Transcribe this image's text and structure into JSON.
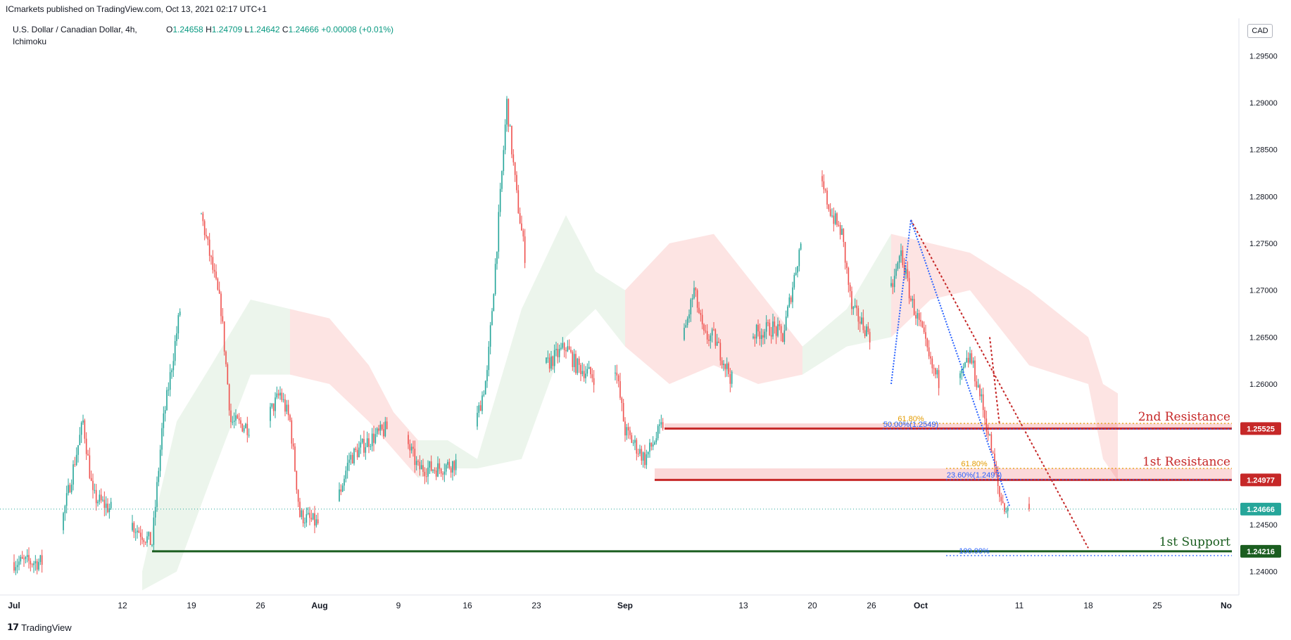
{
  "header": {
    "text": "ICmarkets published on TradingView.com, Oct 13, 2021 02:17 UTC+1"
  },
  "legend": {
    "symbol": "U.S. Dollar / Canadian Dollar, 4h,",
    "indicator": "Ichimoku",
    "open_label": "O",
    "open": "1.24658",
    "high_label": "H",
    "high": "1.24709",
    "low_label": "L",
    "low": "1.24642",
    "close_label": "C",
    "close": "1.24666",
    "change": "+0.00008 (+0.01%)"
  },
  "currency": "CAD",
  "footer": {
    "brand": "TradingView",
    "logo_icon": "tradingview-logo-icon"
  },
  "colors": {
    "up": "#26a69a",
    "down": "#ef5350",
    "resistance": "#c62828",
    "support": "#1b5e20",
    "fib_orange": "#e39b00",
    "fib_blue": "#2962ff",
    "last_price": "#26a69a"
  },
  "chart_data": {
    "type": "candlestick",
    "symbol": "USDCAD",
    "timeframe": "4h",
    "ylim": [
      1.2375,
      1.299
    ],
    "y_ticks": [
      "1.24000",
      "1.24500",
      "1.25000",
      "1.25500",
      "1.26000",
      "1.26500",
      "1.27000",
      "1.27500",
      "1.28000",
      "1.28500",
      "1.29000",
      "1.29500"
    ],
    "x_ticks": [
      "Jul",
      "12",
      "19",
      "26",
      "Aug",
      "9",
      "16",
      "23",
      "Sep",
      "13",
      "20",
      "26",
      "Oct",
      "11",
      "18",
      "25",
      "No"
    ],
    "path_anchors": [
      [
        "Jul 1",
        1.241
      ],
      [
        "Jul 5",
        1.241
      ],
      [
        "Jul 8",
        1.256
      ],
      [
        "Jul 9",
        1.248
      ],
      [
        "Jul 13",
        1.245
      ],
      [
        "Jul 15",
        1.243
      ],
      [
        "Jul 16",
        1.255
      ],
      [
        "Jul 19",
        1.276
      ],
      [
        "Jul 20",
        1.278
      ],
      [
        "Jul 21",
        1.273
      ],
      [
        "Jul 22",
        1.268
      ],
      [
        "Jul 23",
        1.256
      ],
      [
        "Jul 26",
        1.255
      ],
      [
        "Jul 28",
        1.259
      ],
      [
        "Jul 29",
        1.256
      ],
      [
        "Jul 30",
        1.246
      ],
      [
        "Aug 2",
        1.2445
      ],
      [
        "Aug 4",
        1.252
      ],
      [
        "Aug 6",
        1.254
      ],
      [
        "Aug 9",
        1.256
      ],
      [
        "Aug 11",
        1.251
      ],
      [
        "Aug 13",
        1.251
      ],
      [
        "Aug 16",
        1.252
      ],
      [
        "Aug 18",
        1.261
      ],
      [
        "Aug 19",
        1.275
      ],
      [
        "Aug 20",
        1.29
      ],
      [
        "Aug 21",
        1.28
      ],
      [
        "Aug 23",
        1.265
      ],
      [
        "Aug 24",
        1.262
      ],
      [
        "Aug 26",
        1.264
      ],
      [
        "Aug 27",
        1.262
      ],
      [
        "Aug 30",
        1.26
      ],
      [
        "Aug 31",
        1.262
      ],
      [
        "Sep 1",
        1.255
      ],
      [
        "Sep 3",
        1.252
      ],
      [
        "Sep 5",
        1.256
      ],
      [
        "Sep 8",
        1.27
      ],
      [
        "Sep 9",
        1.265
      ],
      [
        "Sep 10",
        1.265
      ],
      [
        "Sep 12",
        1.26
      ],
      [
        "Sep 13",
        1.265
      ],
      [
        "Sep 16",
        1.266
      ],
      [
        "Sep 17",
        1.265
      ],
      [
        "Sep 19",
        1.276
      ],
      [
        "Sep 20",
        1.284
      ],
      [
        "Sep 22",
        1.278
      ],
      [
        "Sep 23",
        1.276
      ],
      [
        "Sep 24",
        1.268
      ],
      [
        "Sep 26",
        1.265
      ],
      [
        "Sep 28",
        1.27
      ],
      [
        "Sep 29",
        1.274
      ],
      [
        "Sep 30",
        1.269
      ],
      [
        "Oct 1",
        1.266
      ],
      [
        "Oct 2",
        1.262
      ],
      [
        "Oct 4",
        1.258
      ],
      [
        "Oct 6",
        1.263
      ],
      [
        "Oct 7",
        1.259
      ],
      [
        "Oct 8",
        1.254
      ],
      [
        "Oct 9",
        1.248
      ],
      [
        "Oct 10",
        1.246
      ],
      [
        "Oct 11",
        1.249
      ],
      [
        "Oct 12",
        1.2466
      ]
    ],
    "last_close": 1.24666,
    "levels": [
      {
        "label": "2nd Resistance",
        "price": 1.25525,
        "price_label": "1.25525",
        "zone": [
          1.25525,
          1.2558
        ],
        "start": "Sep 5",
        "color": "#c62828"
      },
      {
        "label": "1st Resistance",
        "price": 1.24977,
        "price_label": "1.24977",
        "zone": [
          1.24977,
          1.251
        ],
        "start": "Sep 4",
        "color": "#c62828"
      },
      {
        "label": "1st Support",
        "price": 1.24216,
        "price_label": "1.24216",
        "start": "Jul 15",
        "color": "#1b5e20"
      }
    ],
    "last_price_label": "1.24666",
    "fib_labels": [
      {
        "text": "61.80%",
        "price": 1.2558,
        "color": "#e39b00"
      },
      {
        "text": "50.00%(1.2549)",
        "price": 1.2552,
        "color": "#2962ff"
      },
      {
        "text": "61.80%",
        "price": 1.251,
        "color": "#e39b00"
      },
      {
        "text": "23.60%(1.2497)",
        "price": 1.2498,
        "color": "#2962ff"
      },
      {
        "text": "100.00%",
        "price": 1.2417,
        "color": "#2962ff"
      }
    ],
    "cloud_segments": [
      {
        "from": "Jul 14",
        "to": "Jul 21",
        "top": [
          1.24,
          1.256,
          1.262
        ],
        "bottom": [
          1.238,
          1.24,
          1.25
        ],
        "bullish": true
      },
      {
        "from": "Jul 21",
        "to": "Jul 29",
        "top": [
          1.262,
          1.269,
          1.268
        ],
        "bottom": [
          1.25,
          1.261,
          1.261
        ],
        "bullish": true
      },
      {
        "from": "Jul 29",
        "to": "Aug 6",
        "top": [
          1.268,
          1.267,
          1.262
        ],
        "bottom": [
          1.261,
          1.26,
          1.256
        ],
        "bullish": false
      },
      {
        "from": "Aug 6",
        "to": "Aug 11",
        "top": [
          1.262,
          1.257,
          1.254
        ],
        "bottom": [
          1.256,
          1.253,
          1.25
        ],
        "bullish": false
      },
      {
        "from": "Aug 11",
        "to": "Aug 17",
        "top": [
          1.254,
          1.254,
          1.252
        ],
        "bottom": [
          1.25,
          1.251,
          1.251
        ],
        "bullish": true
      },
      {
        "from": "Aug 17",
        "to": "Aug 26",
        "top": [
          1.252,
          1.268,
          1.278
        ],
        "bottom": [
          1.251,
          1.252,
          1.265
        ],
        "bullish": true
      },
      {
        "from": "Aug 26",
        "to": "Sep 1",
        "top": [
          1.278,
          1.272,
          1.27
        ],
        "bottom": [
          1.265,
          1.268,
          1.264
        ],
        "bullish": true
      },
      {
        "from": "Sep 1",
        "to": "Sep 10",
        "top": [
          1.27,
          1.275,
          1.276
        ],
        "bottom": [
          1.264,
          1.26,
          1.262
        ],
        "bullish": false
      },
      {
        "from": "Sep 10",
        "to": "Sep 19",
        "top": [
          1.276,
          1.27,
          1.264
        ],
        "bottom": [
          1.262,
          1.26,
          1.261
        ],
        "bullish": false
      },
      {
        "from": "Sep 19",
        "to": "Sep 28",
        "top": [
          1.264,
          1.268,
          1.276
        ],
        "bottom": [
          1.261,
          1.264,
          1.265
        ],
        "bullish": true
      },
      {
        "from": "Sep 28",
        "to": "Oct 6",
        "top": [
          1.276,
          1.275,
          1.274
        ],
        "bottom": [
          1.265,
          1.269,
          1.27
        ],
        "bullish": false
      },
      {
        "from": "Oct 6",
        "to": "Oct 18",
        "top": [
          1.274,
          1.27,
          1.265
        ],
        "bottom": [
          1.27,
          1.262,
          1.26
        ],
        "bullish": false
      },
      {
        "from": "Oct 18",
        "to": "Oct 21",
        "top": [
          1.265,
          1.26,
          1.259
        ],
        "bottom": [
          1.26,
          1.252,
          1.2497
        ],
        "bullish": false
      }
    ],
    "trendlines": [
      {
        "from": [
          "Sep 30",
          1.2775
        ],
        "to": [
          "Oct 18",
          1.2425
        ],
        "color": "#c62828",
        "dash": "3,3"
      },
      {
        "from": [
          "Oct 8",
          1.265
        ],
        "to": [
          "Oct 9",
          1.2556
        ],
        "color": "#c62828",
        "dash": "3,3"
      },
      {
        "from": [
          "Sep 28",
          1.26
        ],
        "to": [
          "Sep 30",
          1.2775
        ],
        "color": "#2962ff",
        "dash": "2,2"
      },
      {
        "from": [
          "Sep 30",
          1.2775
        ],
        "to": [
          "Oct 10",
          1.247
        ],
        "color": "#2962ff",
        "dash": "2,2"
      }
    ]
  }
}
